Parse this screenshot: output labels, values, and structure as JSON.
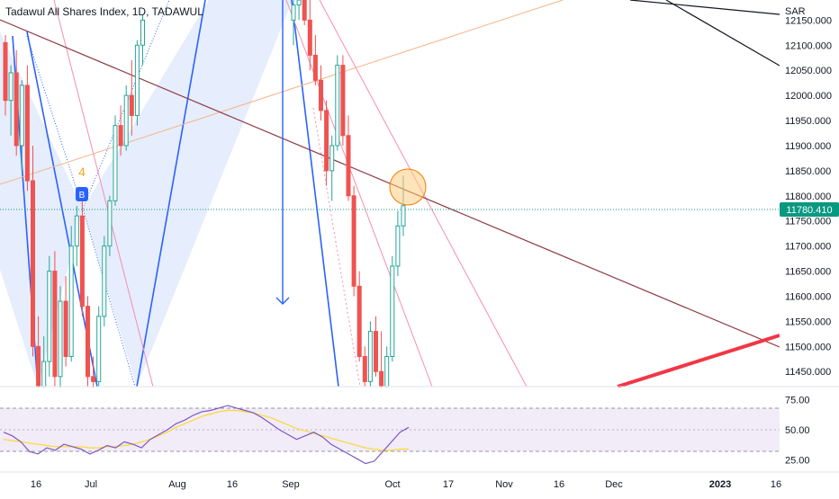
{
  "header": {
    "symbol_title": "Tadawul All Shares Index, 1D, TADAWUL"
  },
  "price_axis": {
    "ticks": [
      "12150.000",
      "12100.000",
      "12050.000",
      "12000.000",
      "11950.000",
      "11900.000",
      "11850.000",
      "11800.000",
      "11750.000",
      "11700.000",
      "11650.000",
      "11600.000",
      "11550.000",
      "11500.000",
      "11450.000"
    ],
    "sar_label": "SAR",
    "last_price_label": "11780.410"
  },
  "rsi_axis": {
    "ticks": [
      "75.00",
      "50.00",
      "25.00"
    ]
  },
  "time_axis": {
    "labels": [
      "16",
      "Jul",
      "Aug",
      "16",
      "Sep",
      "Oct",
      "17",
      "Nov",
      "16",
      "Dec",
      "2023",
      "16"
    ]
  },
  "annotations": {
    "wave_label": "4",
    "signal_badge": "B"
  },
  "colors": {
    "up": "#26a69a",
    "down": "#ef5350",
    "harmonic_line": "#2962ff",
    "harmonic_fill": "#dbe5fb",
    "rsi_line": "#7e57c2",
    "rsi_ma": "#fdd835",
    "last_price": "#089981",
    "trendline": "#8d3a44",
    "support": "#f23645"
  },
  "chart_data": [
    {
      "type": "candlestick",
      "title": "Tadawul All Shares Index, 1D, TADAWUL",
      "ylim": [
        11420,
        12190
      ],
      "last_price": 11780.41,
      "candles": [
        [
          12105,
          12120,
          11960,
          11990
        ],
        [
          11990,
          12060,
          11920,
          12045
        ],
        [
          12045,
          12090,
          11880,
          11900
        ],
        [
          11900,
          12030,
          11850,
          12020
        ],
        [
          12020,
          12060,
          11810,
          11830
        ],
        [
          11830,
          11900,
          11480,
          11500
        ],
        [
          11500,
          11560,
          11400,
          11420
        ],
        [
          11420,
          11520,
          11380,
          11470
        ],
        [
          11470,
          11680,
          11440,
          11650
        ],
        [
          11650,
          11690,
          11420,
          11440
        ],
        [
          11440,
          11620,
          11400,
          11590
        ],
        [
          11590,
          11640,
          11460,
          11480
        ],
        [
          11480,
          11740,
          11470,
          11700
        ],
        [
          11700,
          11780,
          11660,
          11760
        ],
        [
          11760,
          11790,
          11560,
          11580
        ],
        [
          11580,
          11600,
          11420,
          11440
        ],
        [
          11440,
          11480,
          11400,
          11430
        ],
        [
          11430,
          11580,
          11420,
          11560
        ],
        [
          11560,
          11720,
          11540,
          11700
        ],
        [
          11700,
          11800,
          11680,
          11790
        ],
        [
          11790,
          11960,
          11780,
          11940
        ],
        [
          11940,
          11980,
          11880,
          11900
        ],
        [
          11900,
          12020,
          11890,
          12000
        ],
        [
          12000,
          12070,
          11920,
          11960
        ],
        [
          11960,
          12110,
          11940,
          12100
        ],
        [
          12100,
          12160,
          12060,
          12150
        ],
        [
          12150,
          12200,
          12100,
          12180
        ],
        [
          12180,
          12210,
          12150,
          12190
        ],
        [
          12190,
          12215,
          12140,
          12150
        ],
        [
          12150,
          12190,
          12050,
          12080
        ],
        [
          12080,
          12120,
          12020,
          12030
        ],
        [
          12030,
          12060,
          11950,
          11970
        ],
        [
          11970,
          11990,
          11820,
          11850
        ],
        [
          11850,
          11920,
          11790,
          11900
        ],
        [
          11900,
          12080,
          11890,
          12060
        ],
        [
          12060,
          12080,
          11900,
          11920
        ],
        [
          11920,
          11960,
          11790,
          11800
        ],
        [
          11800,
          11820,
          11600,
          11620
        ],
        [
          11620,
          11650,
          11470,
          11480
        ],
        [
          11480,
          11500,
          11420,
          11430
        ],
        [
          11430,
          11550,
          11420,
          11530
        ],
        [
          11530,
          11560,
          11440,
          11450
        ],
        [
          11450,
          11530,
          11400,
          11420
        ],
        [
          11420,
          11500,
          11380,
          11480
        ],
        [
          11480,
          11680,
          11470,
          11660
        ],
        [
          11660,
          11770,
          11640,
          11740
        ],
        [
          11740,
          11840,
          11720,
          11780.41
        ]
      ]
    },
    {
      "type": "line",
      "title": "RSI",
      "ylim": [
        15,
        85
      ],
      "series": [
        {
          "values": [
            48,
            45,
            40,
            32,
            30,
            35,
            33,
            38,
            36,
            34,
            30,
            33,
            37,
            35,
            40,
            38,
            35,
            42,
            46,
            50,
            55,
            58,
            62,
            65,
            66,
            68,
            70,
            68,
            66,
            64,
            60,
            55,
            50,
            46,
            42,
            45,
            48,
            44,
            38,
            34,
            30,
            26,
            22,
            24,
            32,
            40,
            48,
            52
          ]
        },
        {
          "values": [
            42,
            41,
            40,
            39,
            38,
            37,
            36,
            36,
            36,
            36,
            35,
            35,
            36,
            36,
            37,
            38,
            40,
            42,
            45,
            48,
            52,
            55,
            58,
            61,
            63,
            65,
            66,
            66,
            65,
            64,
            62,
            60,
            57,
            54,
            51,
            49,
            47,
            45,
            43,
            41,
            39,
            37,
            35,
            34,
            33,
            33,
            34,
            34
          ]
        }
      ]
    }
  ]
}
